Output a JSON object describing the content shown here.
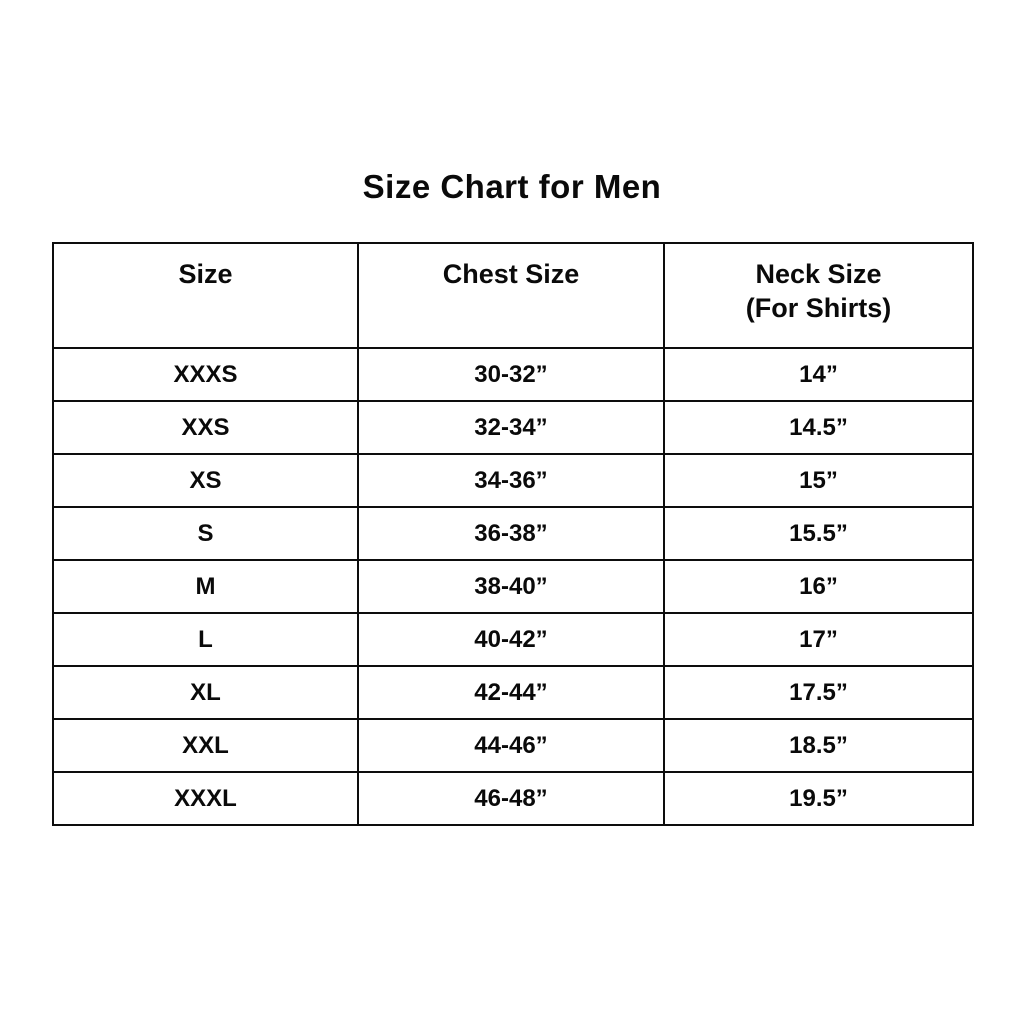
{
  "page": {
    "title": "Size Chart for Men"
  },
  "table": {
    "headers": {
      "size": "Size",
      "chest": "Chest Size",
      "neck_line1": "Neck Size",
      "neck_line2": "(For Shirts)"
    },
    "rows": [
      {
        "size": "XXXS",
        "chest": "30-32”",
        "neck": "14”"
      },
      {
        "size": "XXS",
        "chest": "32-34”",
        "neck": "14.5”"
      },
      {
        "size": "XS",
        "chest": "34-36”",
        "neck": "15”"
      },
      {
        "size": "S",
        "chest": "36-38”",
        "neck": "15.5”"
      },
      {
        "size": "M",
        "chest": "38-40”",
        "neck": "16”"
      },
      {
        "size": "L",
        "chest": "40-42”",
        "neck": "17”"
      },
      {
        "size": "XL",
        "chest": "42-44”",
        "neck": "17.5”"
      },
      {
        "size": "XXL",
        "chest": "44-46”",
        "neck": "18.5”"
      },
      {
        "size": "XXXL",
        "chest": "46-48”",
        "neck": "19.5”"
      }
    ]
  },
  "chart_data": {
    "type": "table",
    "title": "Size Chart for Men",
    "columns": [
      "Size",
      "Chest Size",
      "Neck Size (For Shirts)"
    ],
    "rows": [
      [
        "XXXS",
        "30-32”",
        "14”"
      ],
      [
        "XXS",
        "32-34”",
        "14.5”"
      ],
      [
        "XS",
        "34-36”",
        "15”"
      ],
      [
        "S",
        "36-38”",
        "15.5”"
      ],
      [
        "M",
        "38-40”",
        "16”"
      ],
      [
        "L",
        "40-42”",
        "17”"
      ],
      [
        "XL",
        "42-44”",
        "17.5”"
      ],
      [
        "XXL",
        "44-46”",
        "18.5”"
      ],
      [
        "XXXL",
        "46-48”",
        "19.5”"
      ]
    ],
    "layout_hints": {
      "background": "#ffffff",
      "border_color": "#0d0d0d",
      "text_color": "#0a0a0a",
      "header_row_taller": true,
      "all_text_bold_centered": true
    }
  }
}
